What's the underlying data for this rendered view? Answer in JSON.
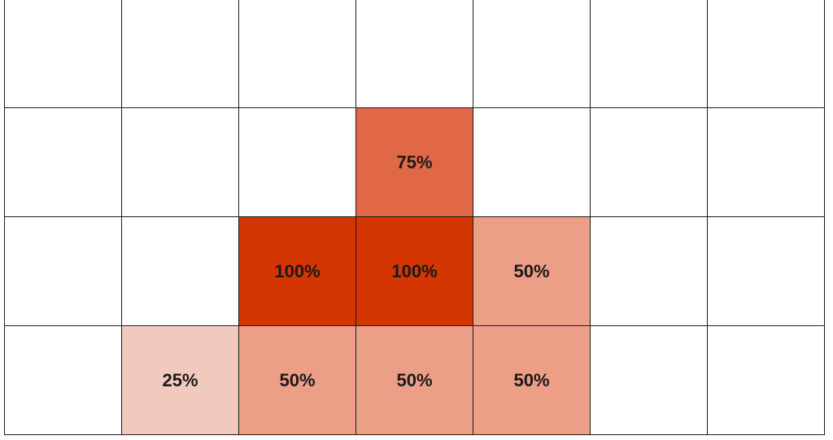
{
  "grid": {
    "columns": 7,
    "rows": 4,
    "color_scale": {
      "empty": "#ffffff",
      "25": "#f2cabd",
      "50": "#ec9e86",
      "75": "#e06846",
      "100": "#d33600"
    },
    "cells": [
      [
        null,
        null,
        null,
        null,
        null,
        null,
        null
      ],
      [
        null,
        null,
        null,
        "75%",
        null,
        null,
        null
      ],
      [
        null,
        null,
        "100%",
        "100%",
        "50%",
        null,
        null
      ],
      [
        null,
        "25%",
        "50%",
        "50%",
        "50%",
        null,
        null
      ]
    ]
  }
}
